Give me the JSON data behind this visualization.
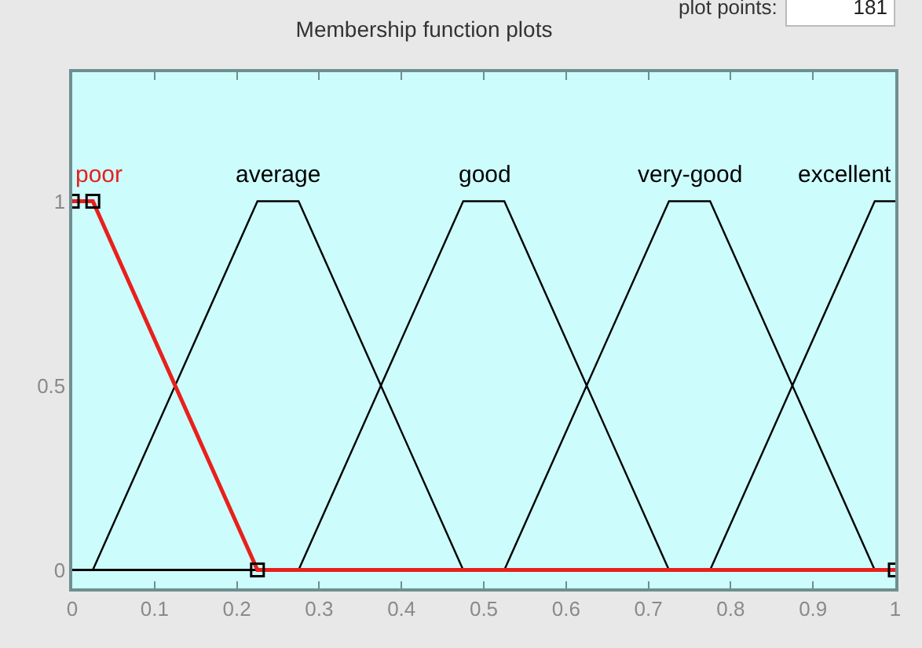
{
  "chart_data": {
    "type": "line",
    "title": "Membership function plots",
    "annotations": [
      "plot points:",
      "181"
    ],
    "xlim": [
      0,
      1
    ],
    "xticks": [
      0,
      0.1,
      0.2,
      0.3,
      0.4,
      0.5,
      0.6,
      0.7,
      0.8,
      0.9,
      1
    ],
    "ylim": [
      -0.05,
      1.35
    ],
    "yticks": [
      0,
      0.5,
      1
    ],
    "grid": false,
    "legend": false,
    "line_style": "solid",
    "series": [
      {
        "name": "average",
        "color": "#000000",
        "x": [
          0,
          0.025,
          0.225,
          0.275,
          0.475,
          1
        ],
        "values": [
          0,
          0,
          1,
          1,
          0,
          0
        ]
      },
      {
        "name": "good",
        "color": "#000000",
        "x": [
          0,
          0.275,
          0.475,
          0.525,
          0.725,
          1
        ],
        "values": [
          0,
          0,
          1,
          1,
          0,
          0
        ]
      },
      {
        "name": "very-good",
        "color": "#000000",
        "x": [
          0,
          0.525,
          0.725,
          0.775,
          0.975,
          1
        ],
        "values": [
          0,
          0,
          1,
          1,
          0,
          0
        ]
      },
      {
        "name": "excellent",
        "color": "#000000",
        "x": [
          0,
          0.775,
          0.975,
          1
        ],
        "values": [
          0,
          0,
          1,
          1
        ]
      },
      {
        "name": "poor",
        "color": "#e8201c",
        "marker": "square",
        "x": [
          0,
          0.025,
          0.225,
          1
        ],
        "values": [
          1,
          1,
          0,
          0
        ]
      }
    ]
  }
}
